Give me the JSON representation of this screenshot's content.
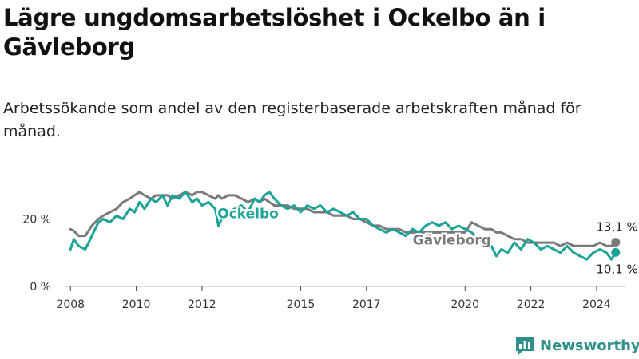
{
  "title": "Lägre ungdomsarbetslöshet i Ockelbo än i Gävleborg",
  "subtitle": "Arbetssökande som andel av den registerbaserade arbetskraften månad för månad.",
  "brand": {
    "name": "Newsworthy",
    "color": "#2f8f8a"
  },
  "chart_data": {
    "type": "line",
    "xlim": [
      2007.8,
      2024.9
    ],
    "ylim": [
      0,
      31
    ],
    "x_ticks": [
      2008,
      2010,
      2012,
      2015,
      2017,
      2020,
      2022,
      2024
    ],
    "y_ticks": [
      {
        "value": 0,
        "label": "0 %"
      },
      {
        "value": 20,
        "label": "20 %"
      }
    ],
    "grid": true,
    "series": [
      {
        "name": "Ockelbo",
        "color": "#1aa396",
        "end_label": "10,1 %",
        "points": [
          [
            2008.0,
            11
          ],
          [
            2008.1,
            14
          ],
          [
            2008.25,
            12
          ],
          [
            2008.45,
            11
          ],
          [
            2008.65,
            15
          ],
          [
            2008.85,
            19
          ],
          [
            2009.0,
            20
          ],
          [
            2009.2,
            19
          ],
          [
            2009.4,
            21
          ],
          [
            2009.6,
            20
          ],
          [
            2009.8,
            23
          ],
          [
            2009.95,
            22
          ],
          [
            2010.1,
            25
          ],
          [
            2010.25,
            23
          ],
          [
            2010.45,
            26
          ],
          [
            2010.6,
            25
          ],
          [
            2010.8,
            27
          ],
          [
            2010.95,
            24
          ],
          [
            2011.1,
            27
          ],
          [
            2011.3,
            26
          ],
          [
            2011.5,
            28
          ],
          [
            2011.7,
            25
          ],
          [
            2011.85,
            26
          ],
          [
            2012.0,
            24
          ],
          [
            2012.2,
            25
          ],
          [
            2012.4,
            23
          ],
          [
            2012.5,
            18
          ],
          [
            2012.6,
            20
          ],
          [
            2012.8,
            22
          ],
          [
            2013.0,
            23
          ],
          [
            2013.2,
            24
          ],
          [
            2013.4,
            22
          ],
          [
            2013.6,
            26
          ],
          [
            2013.75,
            25
          ],
          [
            2013.9,
            27
          ],
          [
            2014.05,
            28
          ],
          [
            2014.2,
            26
          ],
          [
            2014.4,
            24
          ],
          [
            2014.6,
            23
          ],
          [
            2014.8,
            24
          ],
          [
            2015.0,
            22
          ],
          [
            2015.2,
            24
          ],
          [
            2015.4,
            23
          ],
          [
            2015.6,
            24
          ],
          [
            2015.8,
            22
          ],
          [
            2016.0,
            23
          ],
          [
            2016.2,
            22
          ],
          [
            2016.4,
            21
          ],
          [
            2016.6,
            22
          ],
          [
            2016.8,
            20
          ],
          [
            2017.0,
            20
          ],
          [
            2017.2,
            18
          ],
          [
            2017.4,
            17
          ],
          [
            2017.6,
            16
          ],
          [
            2017.8,
            17
          ],
          [
            2018.0,
            16
          ],
          [
            2018.2,
            15
          ],
          [
            2018.4,
            17
          ],
          [
            2018.6,
            16
          ],
          [
            2018.8,
            18
          ],
          [
            2019.0,
            19
          ],
          [
            2019.2,
            18
          ],
          [
            2019.4,
            19
          ],
          [
            2019.6,
            17
          ],
          [
            2019.8,
            18
          ],
          [
            2020.0,
            17
          ],
          [
            2020.2,
            16
          ],
          [
            2020.4,
            14
          ],
          [
            2020.6,
            13
          ],
          [
            2020.8,
            12
          ],
          [
            2020.95,
            9
          ],
          [
            2021.1,
            11
          ],
          [
            2021.3,
            10
          ],
          [
            2021.5,
            13
          ],
          [
            2021.7,
            11
          ],
          [
            2021.9,
            14
          ],
          [
            2022.1,
            13
          ],
          [
            2022.3,
            11
          ],
          [
            2022.5,
            12
          ],
          [
            2022.7,
            11
          ],
          [
            2022.9,
            10
          ],
          [
            2023.1,
            12
          ],
          [
            2023.3,
            10
          ],
          [
            2023.5,
            9
          ],
          [
            2023.7,
            8
          ],
          [
            2023.9,
            10
          ],
          [
            2024.1,
            11
          ],
          [
            2024.3,
            10
          ],
          [
            2024.45,
            8
          ],
          [
            2024.58,
            10.1
          ]
        ]
      },
      {
        "name": "Gävleborg",
        "color": "#7a7a7a",
        "end_label": "13,1 %",
        "points": [
          [
            2008.0,
            17
          ],
          [
            2008.1,
            16.5
          ],
          [
            2008.25,
            15
          ],
          [
            2008.45,
            15
          ],
          [
            2008.65,
            18
          ],
          [
            2008.85,
            20
          ],
          [
            2009.0,
            21
          ],
          [
            2009.2,
            22
          ],
          [
            2009.4,
            23
          ],
          [
            2009.6,
            25
          ],
          [
            2009.8,
            26
          ],
          [
            2009.95,
            27
          ],
          [
            2010.1,
            28
          ],
          [
            2010.25,
            27
          ],
          [
            2010.45,
            26
          ],
          [
            2010.6,
            27
          ],
          [
            2010.8,
            27
          ],
          [
            2010.95,
            27
          ],
          [
            2011.1,
            26
          ],
          [
            2011.3,
            27
          ],
          [
            2011.5,
            28
          ],
          [
            2011.7,
            27
          ],
          [
            2011.85,
            28
          ],
          [
            2012.0,
            28
          ],
          [
            2012.2,
            27
          ],
          [
            2012.4,
            26
          ],
          [
            2012.5,
            27
          ],
          [
            2012.6,
            26
          ],
          [
            2012.8,
            27
          ],
          [
            2013.0,
            27
          ],
          [
            2013.2,
            26
          ],
          [
            2013.4,
            25
          ],
          [
            2013.6,
            26
          ],
          [
            2013.75,
            25
          ],
          [
            2013.9,
            26
          ],
          [
            2014.05,
            25
          ],
          [
            2014.2,
            24
          ],
          [
            2014.4,
            24
          ],
          [
            2014.6,
            24
          ],
          [
            2014.8,
            23
          ],
          [
            2015.0,
            23
          ],
          [
            2015.2,
            23
          ],
          [
            2015.4,
            22
          ],
          [
            2015.6,
            22
          ],
          [
            2015.8,
            22
          ],
          [
            2016.0,
            21
          ],
          [
            2016.2,
            21
          ],
          [
            2016.4,
            21
          ],
          [
            2016.6,
            20
          ],
          [
            2016.8,
            20
          ],
          [
            2017.0,
            19
          ],
          [
            2017.2,
            18
          ],
          [
            2017.4,
            18
          ],
          [
            2017.6,
            17
          ],
          [
            2017.8,
            17
          ],
          [
            2018.0,
            17
          ],
          [
            2018.2,
            16
          ],
          [
            2018.4,
            16
          ],
          [
            2018.6,
            16
          ],
          [
            2018.8,
            16
          ],
          [
            2019.0,
            16
          ],
          [
            2019.2,
            16
          ],
          [
            2019.4,
            16
          ],
          [
            2019.6,
            16
          ],
          [
            2019.8,
            16
          ],
          [
            2020.0,
            16
          ],
          [
            2020.2,
            19
          ],
          [
            2020.4,
            18
          ],
          [
            2020.6,
            17
          ],
          [
            2020.8,
            17
          ],
          [
            2020.95,
            16
          ],
          [
            2021.1,
            16
          ],
          [
            2021.3,
            15
          ],
          [
            2021.5,
            14
          ],
          [
            2021.7,
            14
          ],
          [
            2021.9,
            13
          ],
          [
            2022.1,
            13
          ],
          [
            2022.3,
            13
          ],
          [
            2022.5,
            13
          ],
          [
            2022.7,
            13
          ],
          [
            2022.9,
            12
          ],
          [
            2023.1,
            13
          ],
          [
            2023.3,
            12
          ],
          [
            2023.5,
            12
          ],
          [
            2023.7,
            12
          ],
          [
            2023.9,
            12
          ],
          [
            2024.1,
            13
          ],
          [
            2024.3,
            12
          ],
          [
            2024.45,
            12
          ],
          [
            2024.58,
            13.1
          ]
        ]
      }
    ],
    "annotations": [
      {
        "text": "Ockelbo",
        "series": "Ockelbo",
        "x": 2013.4,
        "y": 21.6
      },
      {
        "text": "Gävleborg",
        "series": "Gävleborg",
        "x": 2019.6,
        "y": 13.8
      }
    ]
  }
}
